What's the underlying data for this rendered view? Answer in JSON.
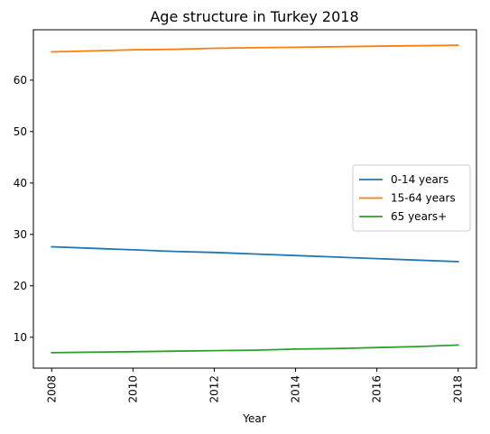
{
  "chart_data": {
    "type": "line",
    "title": "Age structure in Turkey 2018",
    "xlabel": "Year",
    "ylabel": "",
    "x": [
      2008,
      2009,
      2010,
      2011,
      2012,
      2013,
      2014,
      2015,
      2016,
      2017,
      2018
    ],
    "xticks": [
      2008,
      2010,
      2012,
      2014,
      2016,
      2018
    ],
    "xtick_labels": [
      "2008",
      "2010",
      "2012",
      "2014",
      "2016",
      "2018"
    ],
    "yticks": [
      10,
      20,
      30,
      40,
      50,
      60
    ],
    "ytick_labels": [
      "10",
      "20",
      "30",
      "40",
      "50",
      "60"
    ],
    "xlim": [
      2007.55,
      2018.45
    ],
    "ylim": [
      4.0,
      69.8
    ],
    "grid": false,
    "legend_position": "center-right",
    "series": [
      {
        "name": "0-14 years",
        "color": "#1f77b4",
        "values": [
          27.6,
          27.3,
          27.0,
          26.7,
          26.5,
          26.2,
          25.9,
          25.6,
          25.3,
          25.0,
          24.7
        ]
      },
      {
        "name": "15-64 years",
        "color": "#ff7f0e",
        "values": [
          65.5,
          65.7,
          65.9,
          66.0,
          66.2,
          66.3,
          66.4,
          66.5,
          66.6,
          66.7,
          66.8
        ]
      },
      {
        "name": "65 years+",
        "color": "#2ca02c",
        "values": [
          7.0,
          7.1,
          7.2,
          7.3,
          7.4,
          7.5,
          7.7,
          7.8,
          8.0,
          8.2,
          8.5
        ]
      }
    ]
  }
}
